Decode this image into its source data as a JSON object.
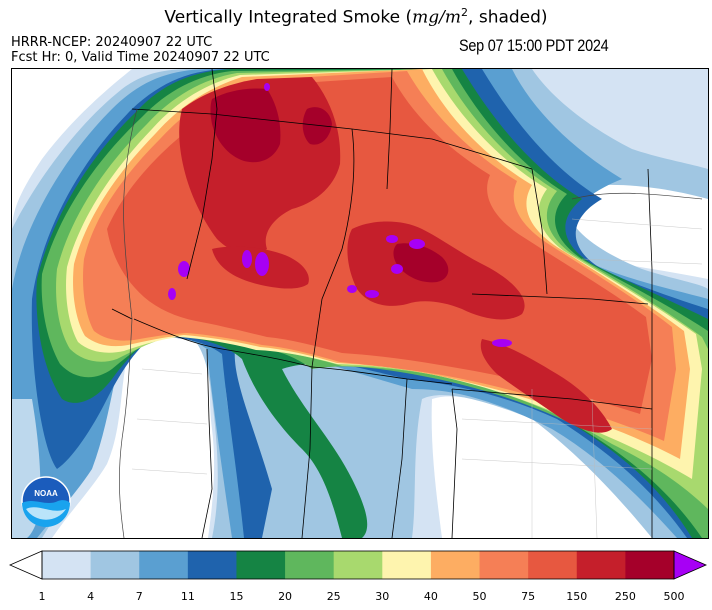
{
  "header": {
    "title_prefix": "Vertically Integrated Smoke (",
    "title_unit": "mg/m",
    "title_unit_exp": "2",
    "title_suffix": ", shaded)",
    "model_line": "HRRR-NCEP: 20240907 22 UTC",
    "forecast_line": "Fcst Hr: 0, Valid Time 20240907 22 UTC",
    "valid_local": "Sep 07 15:00 PDT 2024"
  },
  "logo": {
    "text": "NOAA"
  },
  "colorbar": {
    "ticks": [
      "1",
      "4",
      "7",
      "11",
      "15",
      "20",
      "25",
      "30",
      "40",
      "50",
      "75",
      "150",
      "250",
      "500"
    ],
    "colors": [
      "#d4e3f3",
      "#a0c6e2",
      "#5a9fd1",
      "#1f63ad",
      "#158444",
      "#5fb75d",
      "#a8d96e",
      "#fef4ae",
      "#fdad62",
      "#f57f56",
      "#e75840",
      "#c51f2b",
      "#a5002a"
    ],
    "under_color": "#ffffff",
    "over_color": "#a700f5"
  },
  "colors": {
    "light_blue": "#d4e3f3",
    "mid_blue": "#a0c6e2",
    "blue": "#5a9fd1",
    "dark_blue": "#1f63ad",
    "dark_green": "#158444",
    "green": "#5fb75d",
    "light_green": "#a8d96e",
    "yellow": "#fef4ae",
    "light_orange": "#fdad62",
    "orange": "#f57f56",
    "red_orange": "#e75840",
    "red": "#c51f2b",
    "dark_red": "#a5002a",
    "purple": "#a700f5"
  }
}
